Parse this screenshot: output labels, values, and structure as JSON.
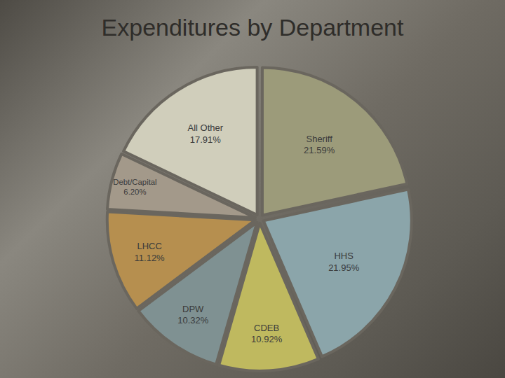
{
  "chart_data": {
    "type": "pie",
    "title": "Expenditures by Department",
    "categories": [
      "Sheriff",
      "HHS",
      "CDEB",
      "DPW",
      "LHCC",
      "Debt/Capital",
      "All Other"
    ],
    "values": [
      21.59,
      21.95,
      10.92,
      10.32,
      11.12,
      6.2,
      17.91
    ],
    "value_labels": [
      "21.59%",
      "21.95%",
      "10.92%",
      "10.32%",
      "11.12%",
      "6.20%",
      "17.91%"
    ],
    "colors": [
      "#9c9b7a",
      "#8ba5aa",
      "#bfb95f",
      "#7f9192",
      "#b68f4f",
      "#a3998a",
      "#d0cebb"
    ],
    "data_labels": true
  }
}
